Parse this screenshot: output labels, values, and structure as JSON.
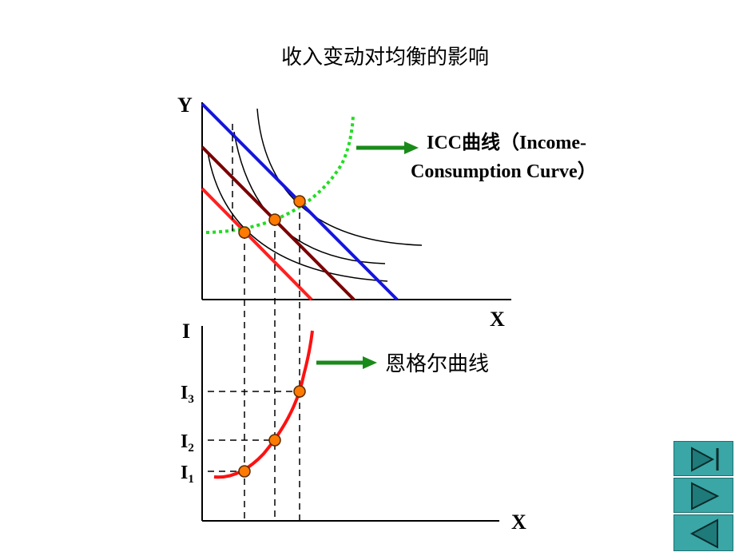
{
  "title": "收入变动对均衡的影响",
  "top_panel": {
    "y_axis_label": "Y",
    "x_axis_label": "X",
    "icc_label_line1": "ICC曲线（Income-",
    "icc_label_line2": "Consumption Curve）"
  },
  "bottom_panel": {
    "y_axis_label": "I",
    "x_axis_label": "X",
    "engel_label": "恩格尔曲线",
    "income_levels": [
      {
        "base": "I",
        "sub": "1"
      },
      {
        "base": "I",
        "sub": "2"
      },
      {
        "base": "I",
        "sub": "3"
      }
    ]
  },
  "colors": {
    "budget_line_1": "#ff2020",
    "budget_line_2": "#7a0000",
    "budget_line_3": "#1515e0",
    "icc_curve": "#22dd22",
    "engel_curve": "#ff1010",
    "point_fill": "#ff7a00",
    "arrow": "#1a8a1a",
    "nav_button": "#3aa6a6"
  },
  "nav": {
    "last_icon": "skip-to-end-icon",
    "next_icon": "play-next-icon",
    "prev_icon": "play-previous-icon"
  }
}
